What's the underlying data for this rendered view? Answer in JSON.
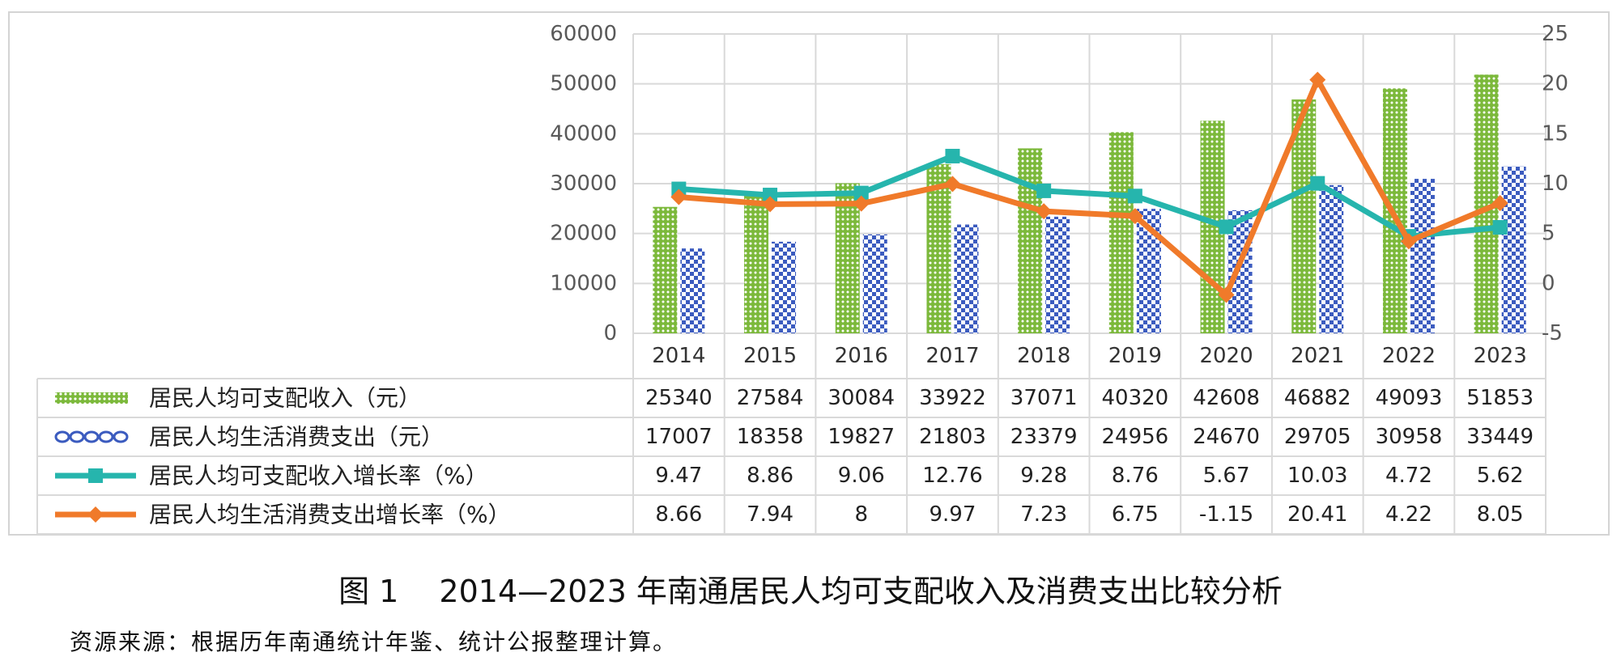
{
  "colors": {
    "income_bar": "#7cb93b",
    "consumption_bar": "#3b5bbf",
    "income_rate_line": "#26b5ad",
    "consumption_rate_line": "#f07a2a",
    "grid": "#d9d9d9",
    "axis_text": "#595959"
  },
  "chart_data": {
    "type": "bar",
    "categories": [
      "2014",
      "2015",
      "2016",
      "2017",
      "2018",
      "2019",
      "2020",
      "2021",
      "2022",
      "2023"
    ],
    "series": [
      {
        "name": "居民人均可支配收入（元）",
        "kind": "bar",
        "axis": "left",
        "pattern": "dots",
        "color_key": "income_bar",
        "labels": [
          "25340",
          "27584",
          "30084",
          "33922",
          "37071",
          "40320",
          "42608",
          "46882",
          "49093",
          "51853"
        ],
        "values": [
          25340,
          27584,
          30084,
          33922,
          37071,
          40320,
          42608,
          46882,
          49093,
          51853
        ]
      },
      {
        "name": "居民人均生活消费支出（元）",
        "kind": "bar",
        "axis": "left",
        "pattern": "checker",
        "color_key": "consumption_bar",
        "labels": [
          "17007",
          "18358",
          "19827",
          "21803",
          "23379",
          "24956",
          "24670",
          "29705",
          "30958",
          "33449"
        ],
        "values": [
          17007,
          18358,
          19827,
          21803,
          23379,
          24956,
          24670,
          29705,
          30958,
          33449
        ]
      },
      {
        "name": "居民人均可支配收入增长率（%）",
        "kind": "line",
        "axis": "right",
        "marker": "square",
        "color_key": "income_rate_line",
        "labels": [
          "9.47",
          "8.86",
          "9.06",
          "12.76",
          "9.28",
          "8.76",
          "5.67",
          "10.03",
          "4.72",
          "5.62"
        ],
        "values": [
          9.47,
          8.86,
          9.06,
          12.76,
          9.28,
          8.76,
          5.67,
          10.03,
          4.72,
          5.62
        ]
      },
      {
        "name": "居民人均生活消费支出增长率（%）",
        "kind": "line",
        "axis": "right",
        "marker": "diamond",
        "color_key": "consumption_rate_line",
        "labels": [
          "8.66",
          "7.94",
          "8",
          "9.97",
          "7.23",
          "6.75",
          "-1.15",
          "20.41",
          "4.22",
          "8.05"
        ],
        "values": [
          8.66,
          7.94,
          8,
          9.97,
          7.23,
          6.75,
          -1.15,
          20.41,
          4.22,
          8.05
        ]
      }
    ],
    "y_left": {
      "ylim": [
        0,
        60000
      ],
      "ticks": [
        "60000",
        "50000",
        "40000",
        "30000",
        "20000",
        "10000",
        "0"
      ]
    },
    "y_right": {
      "ylim": [
        -5,
        25
      ],
      "ticks": [
        "25",
        "20",
        "15",
        "10",
        "5",
        "0",
        "-5"
      ]
    },
    "grid": true,
    "legend": "data-table-below",
    "caption": "图 1　 2014—2023 年南通居民人均可支配收入及消费支出比较分析",
    "source": "资源来源：根据历年南通统计年鉴、统计公报整理计算。"
  }
}
